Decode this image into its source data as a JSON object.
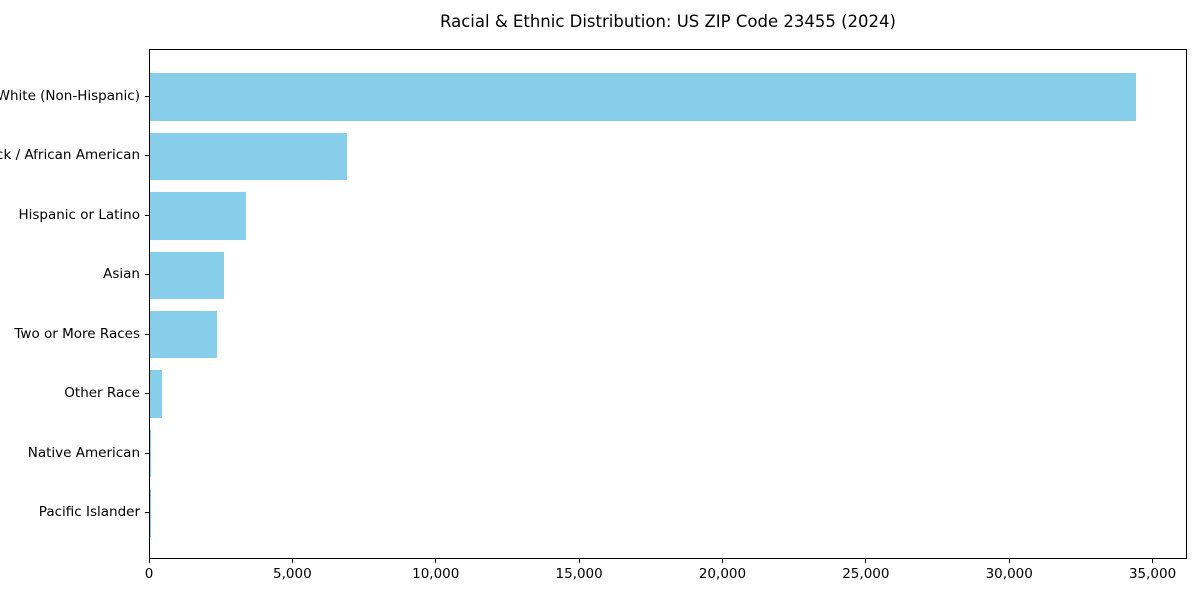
{
  "chart_data": {
    "type": "bar",
    "orientation": "horizontal",
    "title": "Racial & Ethnic Distribution: US ZIP Code 23455 (2024)",
    "categories": [
      "White (Non-Hispanic)",
      "Black / African American",
      "Hispanic or Latino",
      "Asian",
      "Two or More Races",
      "Other Race",
      "Native American",
      "Pacific Islander"
    ],
    "values": [
      34400,
      6870,
      3350,
      2580,
      2340,
      420,
      50,
      25
    ],
    "bar_color": "#87CEEB",
    "xlabel": "",
    "ylabel": "",
    "xlim": [
      0,
      36200
    ],
    "x_ticks": [
      {
        "value": 0,
        "label": "0"
      },
      {
        "value": 5000,
        "label": "5,000"
      },
      {
        "value": 10000,
        "label": "10,000"
      },
      {
        "value": 15000,
        "label": "15,000"
      },
      {
        "value": 20000,
        "label": "20,000"
      },
      {
        "value": 25000,
        "label": "25,000"
      },
      {
        "value": 30000,
        "label": "30,000"
      },
      {
        "value": 35000,
        "label": "35,000"
      }
    ],
    "grid": false,
    "legend_position": "none"
  }
}
